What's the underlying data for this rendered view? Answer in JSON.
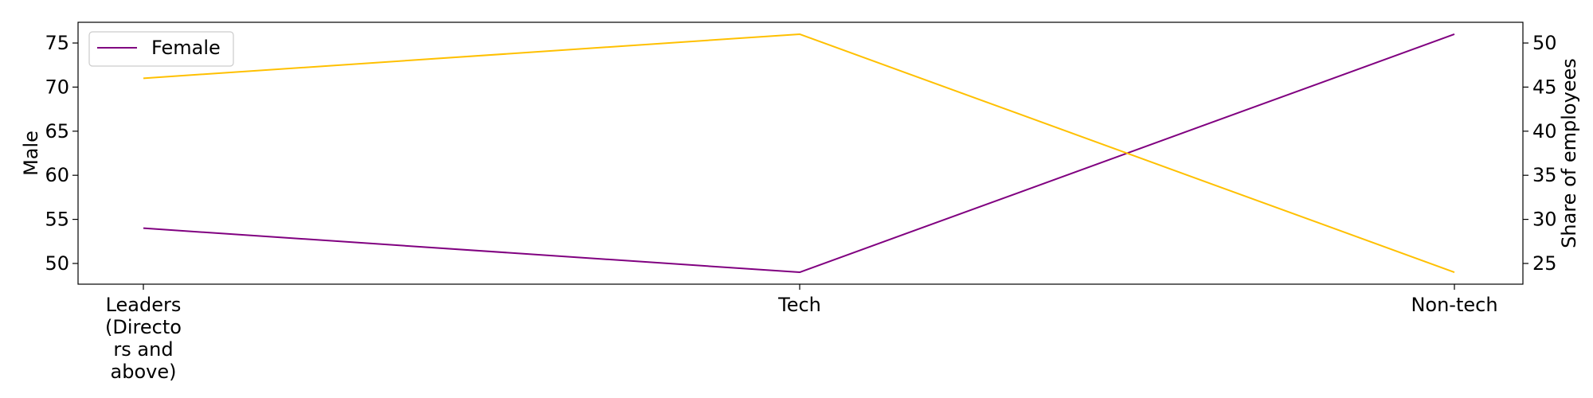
{
  "chart_data": {
    "type": "line",
    "categories": [
      "Leaders (Directors and above)",
      "Tech",
      "Non-tech"
    ],
    "category_tick_lines": [
      [
        "Leaders",
        "(Directo",
        "rs and",
        "above)"
      ],
      [
        "Tech"
      ],
      [
        "Non-tech"
      ]
    ],
    "left_axis": {
      "label": "Male",
      "ticks": [
        50,
        55,
        60,
        65,
        70,
        75
      ],
      "range": [
        47.65,
        77.35
      ]
    },
    "right_axis": {
      "label": "Share of employees",
      "ticks": [
        25,
        30,
        35,
        40,
        45,
        50
      ],
      "range": [
        22.65,
        52.35
      ]
    },
    "series": [
      {
        "name": "Female",
        "axis": "left",
        "color": "#800080",
        "values": [
          54,
          49,
          76
        ]
      },
      {
        "axis": "right",
        "color": "#FFC000",
        "values": [
          46,
          51,
          24
        ]
      }
    ],
    "legend": {
      "position": "top-left",
      "entries": [
        "Female"
      ]
    },
    "grid": false
  }
}
